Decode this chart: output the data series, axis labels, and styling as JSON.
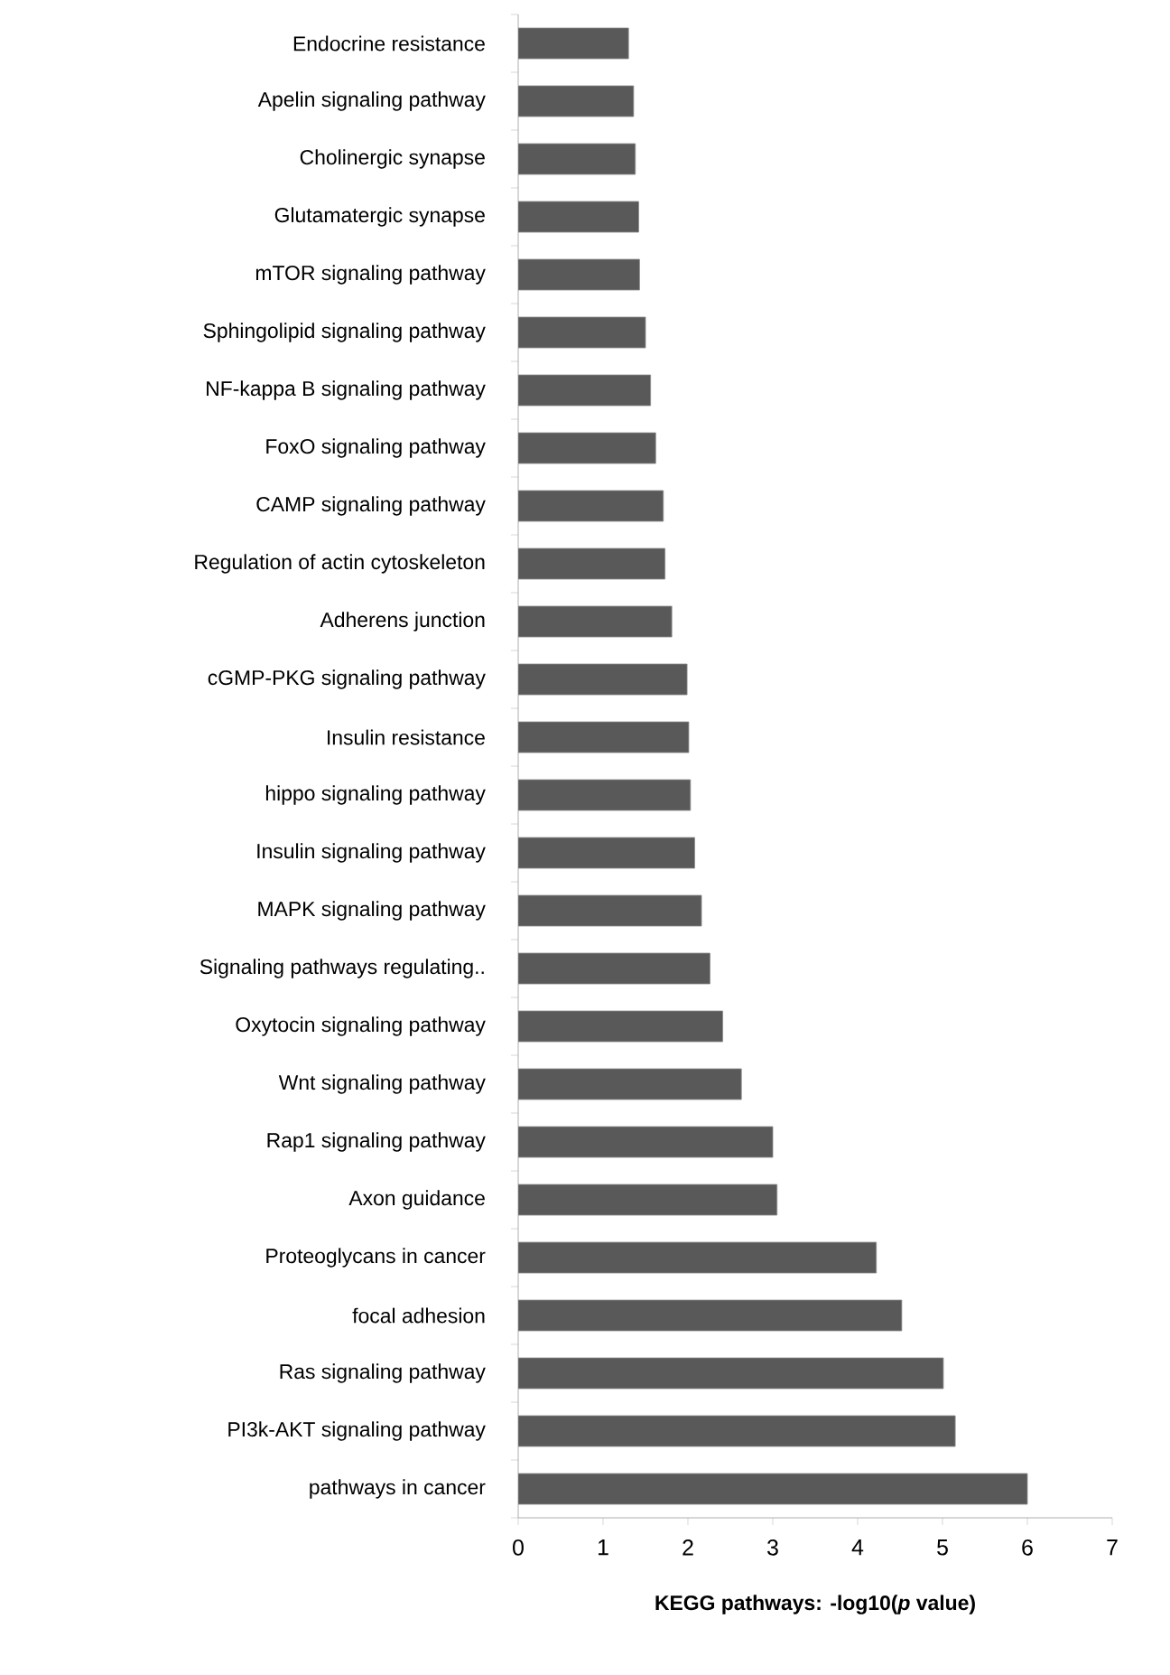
{
  "chart_data": {
    "type": "bar",
    "orientation": "horizontal",
    "xlabel": "KEGG pathways:  -log10(*p* value)",
    "categories": [
      "Endocrine resistance",
      "Apelin signaling pathway",
      "Cholinergic synapse",
      "Glutamatergic synapse",
      "mTOR signaling pathway",
      "Sphingolipid signaling pathway",
      "NF-kappa B signaling pathway",
      "FoxO signaling pathway",
      "CAMP signaling pathway",
      "Regulation of actin cytoskeleton",
      "Adherens junction",
      "cGMP-PKG signaling pathway",
      "Insulin resistance",
      "hippo signaling pathway",
      "Insulin signaling pathway",
      "MAPK signaling pathway",
      "Signaling pathways regulating..",
      "Oxytocin signaling pathway",
      "Wnt signaling pathway",
      "Rap1 signaling pathway",
      "Axon guidance",
      "Proteoglycans in cancer",
      "focal adhesion",
      "Ras signaling pathway",
      "PI3k-AKT signaling pathway",
      "pathways in cancer"
    ],
    "values": [
      1.3,
      1.36,
      1.38,
      1.42,
      1.43,
      1.5,
      1.56,
      1.62,
      1.71,
      1.73,
      1.81,
      1.99,
      2.01,
      2.03,
      2.08,
      2.16,
      2.26,
      2.41,
      2.63,
      3.0,
      3.05,
      4.22,
      4.52,
      5.01,
      5.15,
      6.0
    ],
    "color": "#595959",
    "xlim": [
      0,
      7
    ],
    "xticks": [
      0,
      1,
      2,
      3,
      4,
      5,
      6,
      7
    ]
  }
}
